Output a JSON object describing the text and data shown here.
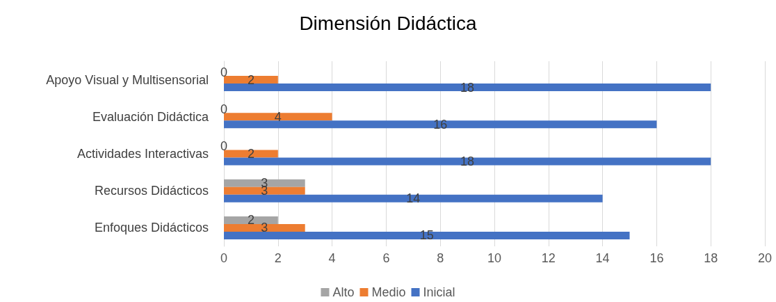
{
  "chart_data": {
    "type": "bar",
    "orientation": "horizontal",
    "title": "Dimensión Didáctica",
    "categories": [
      "Apoyo Visual y Multisensorial",
      "Evaluación Didáctica",
      "Actividades Interactivas",
      "Recursos Didácticos",
      "Enfoques Didácticos"
    ],
    "series": [
      {
        "name": "Alto",
        "color": "#a5a5a5",
        "values": [
          0,
          0,
          0,
          3,
          2
        ]
      },
      {
        "name": "Medio",
        "color": "#ed7d31",
        "values": [
          2,
          4,
          2,
          3,
          3
        ]
      },
      {
        "name": "Inicial",
        "color": "#4472c4",
        "values": [
          18,
          16,
          18,
          14,
          15
        ]
      }
    ],
    "xlim": [
      0,
      20
    ],
    "xticks": [
      0,
      2,
      4,
      6,
      8,
      10,
      12,
      14,
      16,
      18,
      20
    ],
    "grid": "x",
    "legend": "bottom",
    "data_labels": true
  }
}
